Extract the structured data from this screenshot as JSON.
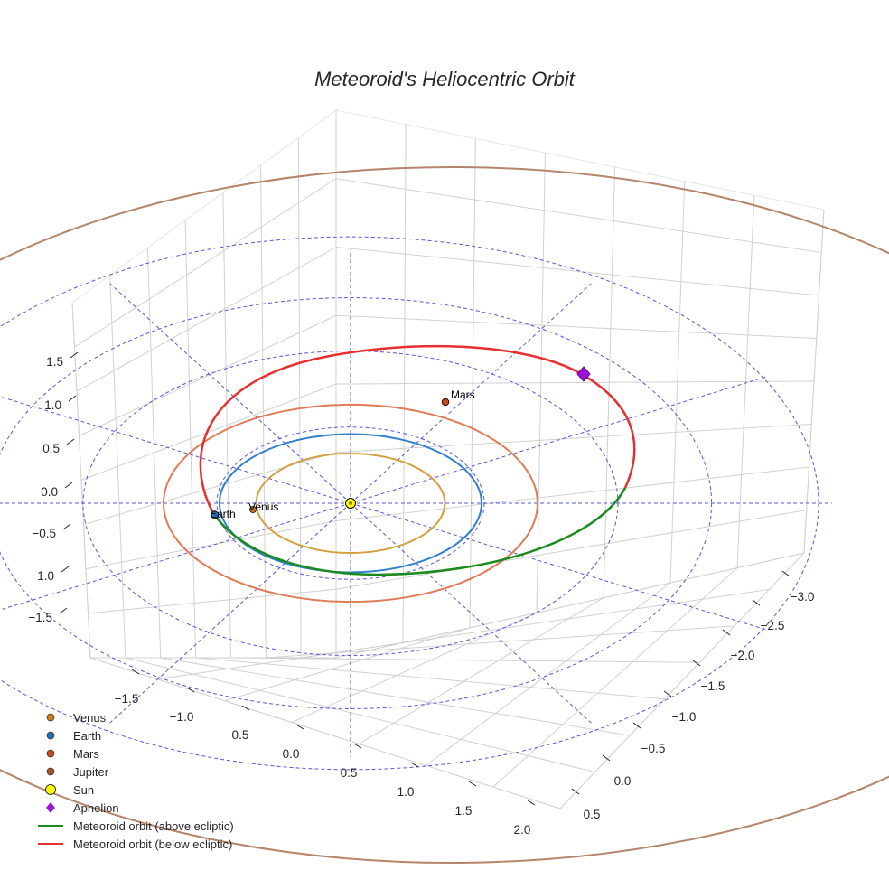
{
  "chart_data": {
    "type": "orbit3d",
    "title": "Meteoroid's Heliocentric Orbit",
    "z_ticks": [
      "1.5",
      "1.0",
      "0.5",
      "0.0",
      "−0.5",
      "−1.0",
      "−1.5"
    ],
    "x_ticks": [
      "−1.5",
      "−1.0",
      "−0.5",
      "0.0",
      "0.5",
      "1.0",
      "1.5",
      "2.0"
    ],
    "y_ticks": [
      "−3.0",
      "−2.5",
      "−2.0",
      "−1.5",
      "−1.0",
      "−0.5",
      "0.0",
      "0.5"
    ],
    "planets": [
      {
        "name": "Venus",
        "label": "Venus",
        "orbit_radius_au": 0.72,
        "color": "#d4a040",
        "marker": "#c87d1a"
      },
      {
        "name": "Earth",
        "label": "Earth",
        "orbit_radius_au": 1.0,
        "color": "#2e7fd0",
        "marker": "#1f6fb4"
      },
      {
        "name": "Mars",
        "label": "Mars",
        "orbit_radius_au": 1.52,
        "color": "#e07b55",
        "marker": "#c8491e"
      },
      {
        "name": "Jupiter",
        "label": "",
        "orbit_radius_au": 5.2,
        "color": "#b5856a",
        "marker": "#a0522d"
      }
    ],
    "sun": {
      "name": "Sun",
      "color": "#ffff00"
    },
    "aphelion": {
      "name": "Aphelion",
      "color": "#9a12d6"
    },
    "meteoroid_orbit": [
      {
        "name": "Meteoroid orbit (above ecliptic)",
        "color": "#1a8a1a"
      },
      {
        "name": "Meteoroid orbit (below ecliptic)",
        "color": "#e63030"
      }
    ],
    "reference_circles": {
      "style": "dashed",
      "color": "#5555dd"
    },
    "legend": [
      {
        "label": "Venus",
        "kind": "dot",
        "color": "#c87d1a"
      },
      {
        "label": "Earth",
        "kind": "dot",
        "color": "#1f6fb4"
      },
      {
        "label": "Mars",
        "kind": "dot",
        "color": "#c8491e"
      },
      {
        "label": "Jupiter",
        "kind": "dot",
        "color": "#a0522d"
      },
      {
        "label": "Sun",
        "kind": "sun",
        "color": "#ffff00"
      },
      {
        "label": "Aphelion",
        "kind": "diamond",
        "color": "#9a12d6"
      },
      {
        "label": "Meteoroid orbit (above ecliptic)",
        "kind": "line",
        "color": "#1a8a1a"
      },
      {
        "label": "Meteoroid orbit (below ecliptic)",
        "kind": "line",
        "color": "#e63030"
      }
    ]
  }
}
